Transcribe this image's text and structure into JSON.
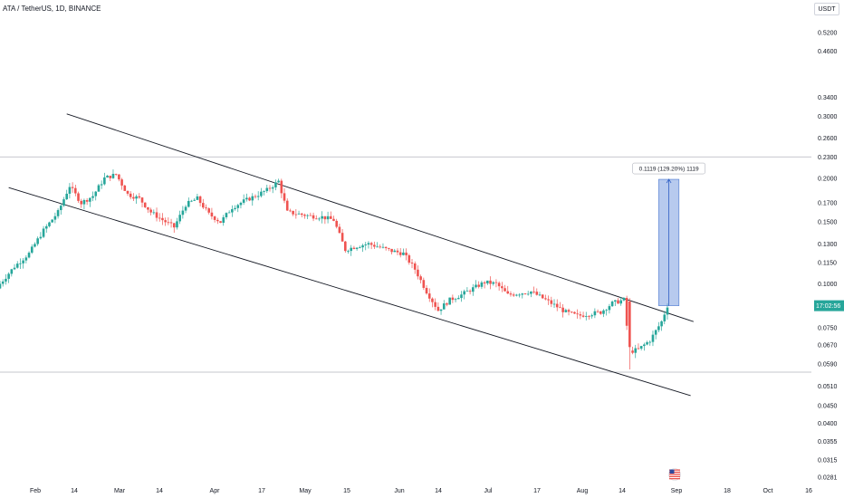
{
  "header": {
    "symbol_title": "ATA / TetherUS, 1D, BINANCE"
  },
  "price_axis": {
    "currency_label": "USDT",
    "current_price_label": "17:02:56"
  },
  "measure_tool": {
    "label": "0.1119 (129.20%) 1119"
  },
  "colors": {
    "up": "#26a69a",
    "down": "#ef5350",
    "trendline": "#131722",
    "measure_fill": "#7b9fe0",
    "price_tag": "#26a69a",
    "grid": "#b2b5be"
  },
  "icons": {
    "timezone": "us-flag-icon"
  },
  "chart_data": {
    "type": "candlestick",
    "title": "ATA / TetherUS, 1D, BINANCE",
    "y_scale": "log",
    "y_ticks": [
      "0.5200",
      "0.4600",
      "0.3400",
      "0.3000",
      "0.2600",
      "0.2300",
      "0.2000",
      "0.1700",
      "0.1500",
      "0.1300",
      "0.1150",
      "0.1000",
      "0.0750",
      "0.0670",
      "0.0590",
      "0.0510",
      "0.0450",
      "0.0400",
      "0.0355",
      "0.0315",
      "0.0281"
    ],
    "x_ticks": [
      "Feb",
      "14",
      "Mar",
      "14",
      "Apr",
      "17",
      "May",
      "15",
      "Jun",
      "14",
      "Jul",
      "17",
      "Aug",
      "14",
      "Sep",
      "18",
      "Oct",
      "16"
    ],
    "horizontal_levels": [
      0.23,
      0.056
    ],
    "trendlines": [
      {
        "name": "upper",
        "from": {
          "date": "2023-02-04",
          "price": 0.305
        },
        "to": {
          "date": "2023-09-08",
          "price": 0.078
        }
      },
      {
        "name": "lower",
        "from": {
          "date": "2023-01-15",
          "price": 0.188
        },
        "to": {
          "date": "2023-09-07",
          "price": 0.048
        }
      }
    ],
    "measure": {
      "from_price": 0.0866,
      "to_price": 0.1985,
      "change": 0.1119,
      "percent": 129.2,
      "bars": 1119,
      "from_date": "2023-08-27",
      "to_date": "2023-09-03"
    },
    "last_price": 0.0866,
    "x_range": [
      "2023-01-12",
      "2023-10-18"
    ],
    "series": [
      {
        "date": "2023-01-12",
        "value": 0.1
      },
      {
        "date": "2023-01-17",
        "value": 0.112
      },
      {
        "date": "2023-01-22",
        "value": 0.122
      },
      {
        "date": "2023-01-27",
        "value": 0.142
      },
      {
        "date": "2023-02-01",
        "value": 0.16
      },
      {
        "date": "2023-02-05",
        "value": 0.19
      },
      {
        "date": "2023-02-09",
        "value": 0.17
      },
      {
        "date": "2023-02-13",
        "value": 0.178
      },
      {
        "date": "2023-02-17",
        "value": 0.2
      },
      {
        "date": "2023-02-21",
        "value": 0.205
      },
      {
        "date": "2023-02-25",
        "value": 0.18
      },
      {
        "date": "2023-03-01",
        "value": 0.175
      },
      {
        "date": "2023-03-05",
        "value": 0.16
      },
      {
        "date": "2023-03-09",
        "value": 0.152
      },
      {
        "date": "2023-03-13",
        "value": 0.145
      },
      {
        "date": "2023-03-17",
        "value": 0.168
      },
      {
        "date": "2023-03-21",
        "value": 0.175
      },
      {
        "date": "2023-03-25",
        "value": 0.158
      },
      {
        "date": "2023-03-29",
        "value": 0.15
      },
      {
        "date": "2023-04-02",
        "value": 0.165
      },
      {
        "date": "2023-04-06",
        "value": 0.172
      },
      {
        "date": "2023-04-10",
        "value": 0.178
      },
      {
        "date": "2023-04-14",
        "value": 0.185
      },
      {
        "date": "2023-04-18",
        "value": 0.196
      },
      {
        "date": "2023-04-21",
        "value": 0.16
      },
      {
        "date": "2023-04-25",
        "value": 0.158
      },
      {
        "date": "2023-04-29",
        "value": 0.156
      },
      {
        "date": "2023-05-03",
        "value": 0.155
      },
      {
        "date": "2023-05-07",
        "value": 0.152
      },
      {
        "date": "2023-05-11",
        "value": 0.125
      },
      {
        "date": "2023-05-15",
        "value": 0.128
      },
      {
        "date": "2023-05-19",
        "value": 0.13
      },
      {
        "date": "2023-05-23",
        "value": 0.127
      },
      {
        "date": "2023-05-27",
        "value": 0.124
      },
      {
        "date": "2023-05-31",
        "value": 0.122
      },
      {
        "date": "2023-06-04",
        "value": 0.11
      },
      {
        "date": "2023-06-08",
        "value": 0.095
      },
      {
        "date": "2023-06-12",
        "value": 0.084
      },
      {
        "date": "2023-06-16",
        "value": 0.09
      },
      {
        "date": "2023-06-20",
        "value": 0.093
      },
      {
        "date": "2023-06-24",
        "value": 0.097
      },
      {
        "date": "2023-06-28",
        "value": 0.101
      },
      {
        "date": "2023-07-02",
        "value": 0.1
      },
      {
        "date": "2023-07-06",
        "value": 0.093
      },
      {
        "date": "2023-07-10",
        "value": 0.094
      },
      {
        "date": "2023-07-14",
        "value": 0.095
      },
      {
        "date": "2023-07-18",
        "value": 0.091
      },
      {
        "date": "2023-07-22",
        "value": 0.087
      },
      {
        "date": "2023-07-26",
        "value": 0.083
      },
      {
        "date": "2023-07-30",
        "value": 0.081
      },
      {
        "date": "2023-08-03",
        "value": 0.082
      },
      {
        "date": "2023-08-07",
        "value": 0.083
      },
      {
        "date": "2023-08-11",
        "value": 0.088
      },
      {
        "date": "2023-08-15",
        "value": 0.09
      },
      {
        "date": "2023-08-17",
        "value": 0.064
      },
      {
        "date": "2023-08-20",
        "value": 0.065
      },
      {
        "date": "2023-08-24",
        "value": 0.069
      },
      {
        "date": "2023-08-28",
        "value": 0.078
      },
      {
        "date": "2023-08-30",
        "value": 0.0866
      }
    ]
  }
}
